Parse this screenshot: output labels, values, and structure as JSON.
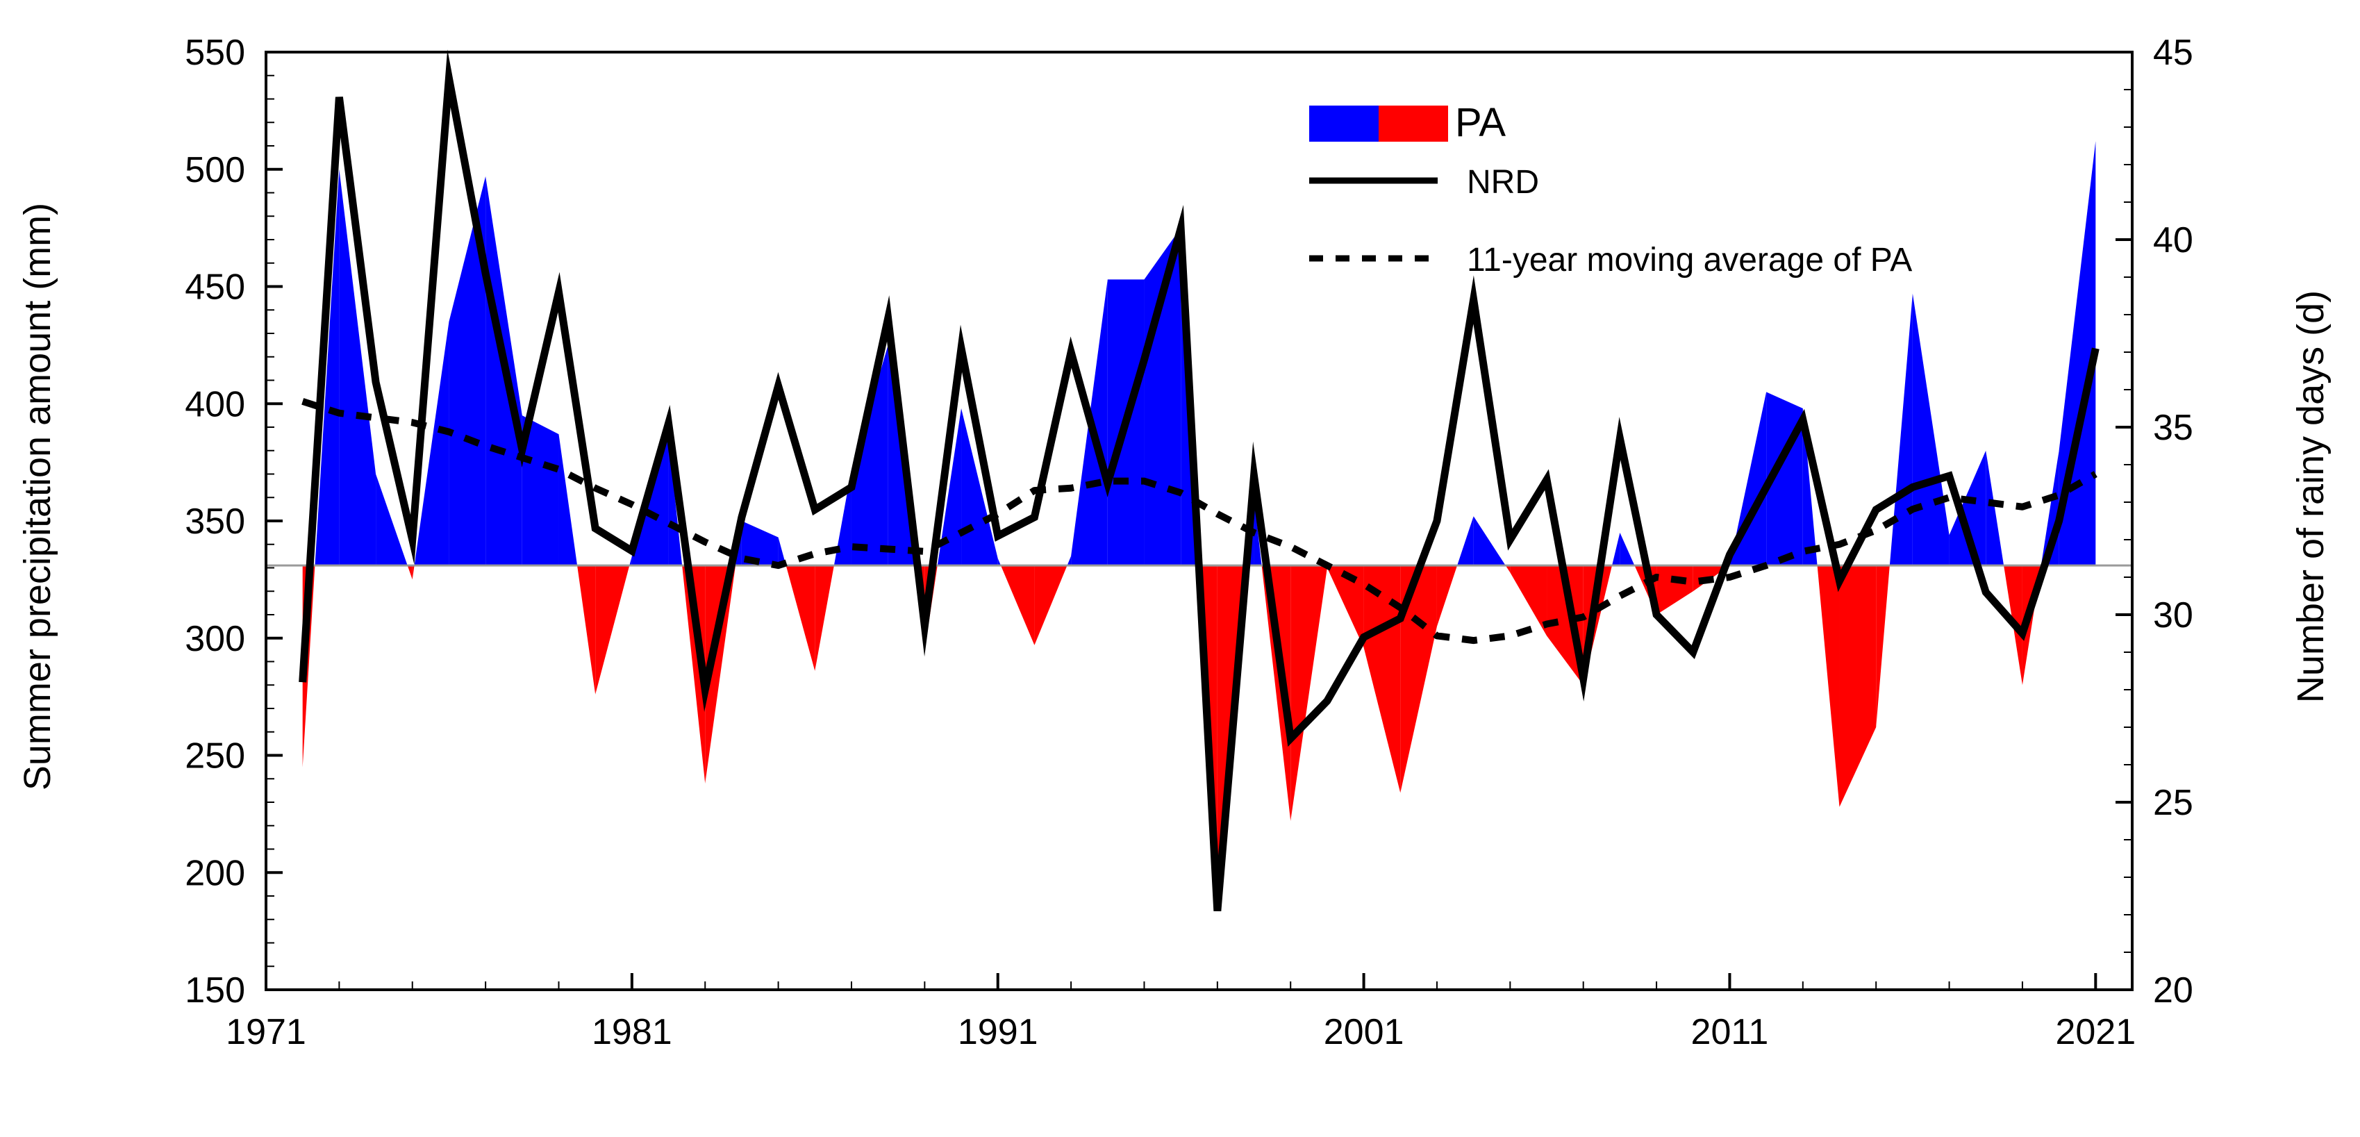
{
  "chart_data": {
    "type": "area+line",
    "title": "",
    "xlabel": "",
    "ylabel_left": "Summer precipitation amount (mm)",
    "ylabel_right": "Number of rainy days (d)",
    "xlim": [
      1971,
      2022
    ],
    "ylim_left": [
      150,
      550
    ],
    "ylim_right": [
      20,
      45
    ],
    "x_ticks": [
      1971,
      1981,
      1991,
      2001,
      2011,
      2021
    ],
    "x_tick_labels": [
      "1971",
      "1981",
      "1991",
      "2001",
      "2011",
      "2021"
    ],
    "y_left_ticks": [
      150,
      200,
      250,
      300,
      350,
      400,
      450,
      500,
      550
    ],
    "y_left_tick_labels": [
      "150",
      "200",
      "250",
      "300",
      "350",
      "400",
      "450",
      "500",
      "550"
    ],
    "y_right_ticks": [
      20,
      25,
      30,
      35,
      40,
      45
    ],
    "y_right_tick_labels": [
      "20",
      "25",
      "30",
      "35",
      "40",
      "45"
    ],
    "baseline_pa": 331,
    "years": [
      1972,
      1973,
      1974,
      1975,
      1976,
      1977,
      1978,
      1979,
      1980,
      1981,
      1982,
      1983,
      1984,
      1985,
      1986,
      1987,
      1988,
      1989,
      1990,
      1991,
      1992,
      1993,
      1994,
      1995,
      1996,
      1997,
      1998,
      1999,
      2000,
      2001,
      2002,
      2003,
      2004,
      2005,
      2006,
      2007,
      2008,
      2009,
      2010,
      2011,
      2012,
      2013,
      2014,
      2015,
      2016,
      2017,
      2018,
      2019,
      2020,
      2021
    ],
    "series": [
      {
        "name": "PA",
        "axis": "left",
        "style": "filled-anomaly",
        "values": [
          245,
          500,
          370,
          325,
          435,
          497,
          395,
          387,
          276,
          335,
          386,
          238,
          350,
          343,
          286,
          372,
          425,
          295,
          398,
          334,
          297,
          335,
          453,
          453,
          475,
          190,
          360,
          222,
          330,
          296,
          234,
          305,
          352,
          328,
          301,
          280,
          345,
          310,
          320,
          331,
          405,
          398,
          228,
          262,
          447,
          344,
          380,
          280,
          380,
          512
        ]
      },
      {
        "name": "NRD",
        "axis": "right",
        "style": "solid",
        "values": [
          28.2,
          43.8,
          36.2,
          32.0,
          44.3,
          39.1,
          34.4,
          38.6,
          32.3,
          31.7,
          35.1,
          28.0,
          32.6,
          36.1,
          32.8,
          33.4,
          37.9,
          29.7,
          37.1,
          32.1,
          32.6,
          37.0,
          33.5,
          36.8,
          40.3,
          22.1,
          33.7,
          26.7,
          27.7,
          29.4,
          29.9,
          32.5,
          38.4,
          32.0,
          33.6,
          28.3,
          34.7,
          30.0,
          29.0,
          31.6,
          33.4,
          35.2,
          30.9,
          32.8,
          33.4,
          33.7,
          30.6,
          29.5,
          32.5,
          37.1
        ]
      },
      {
        "name": "11-year moving average of PA",
        "axis": "left",
        "style": "dashed",
        "values": [
          401,
          396,
          394,
          392,
          388,
          382,
          377,
          372,
          364,
          357,
          349,
          341,
          334,
          331,
          336,
          339,
          338,
          337,
          345,
          353,
          363,
          364,
          367,
          367,
          362,
          353,
          345,
          339,
          331,
          323,
          313,
          301,
          299,
          301,
          306,
          309,
          318,
          326,
          324,
          326,
          331,
          337,
          340,
          346,
          355,
          360,
          358,
          356,
          361,
          370
        ]
      }
    ],
    "legend": {
      "position": "top-center",
      "entries": [
        "PA",
        "NRD",
        "11-year moving average of PA"
      ]
    },
    "colors": {
      "positive": "#0000ff",
      "negative": "#ff0000",
      "line": "#000000",
      "baseline": "#9a9a9a"
    }
  }
}
